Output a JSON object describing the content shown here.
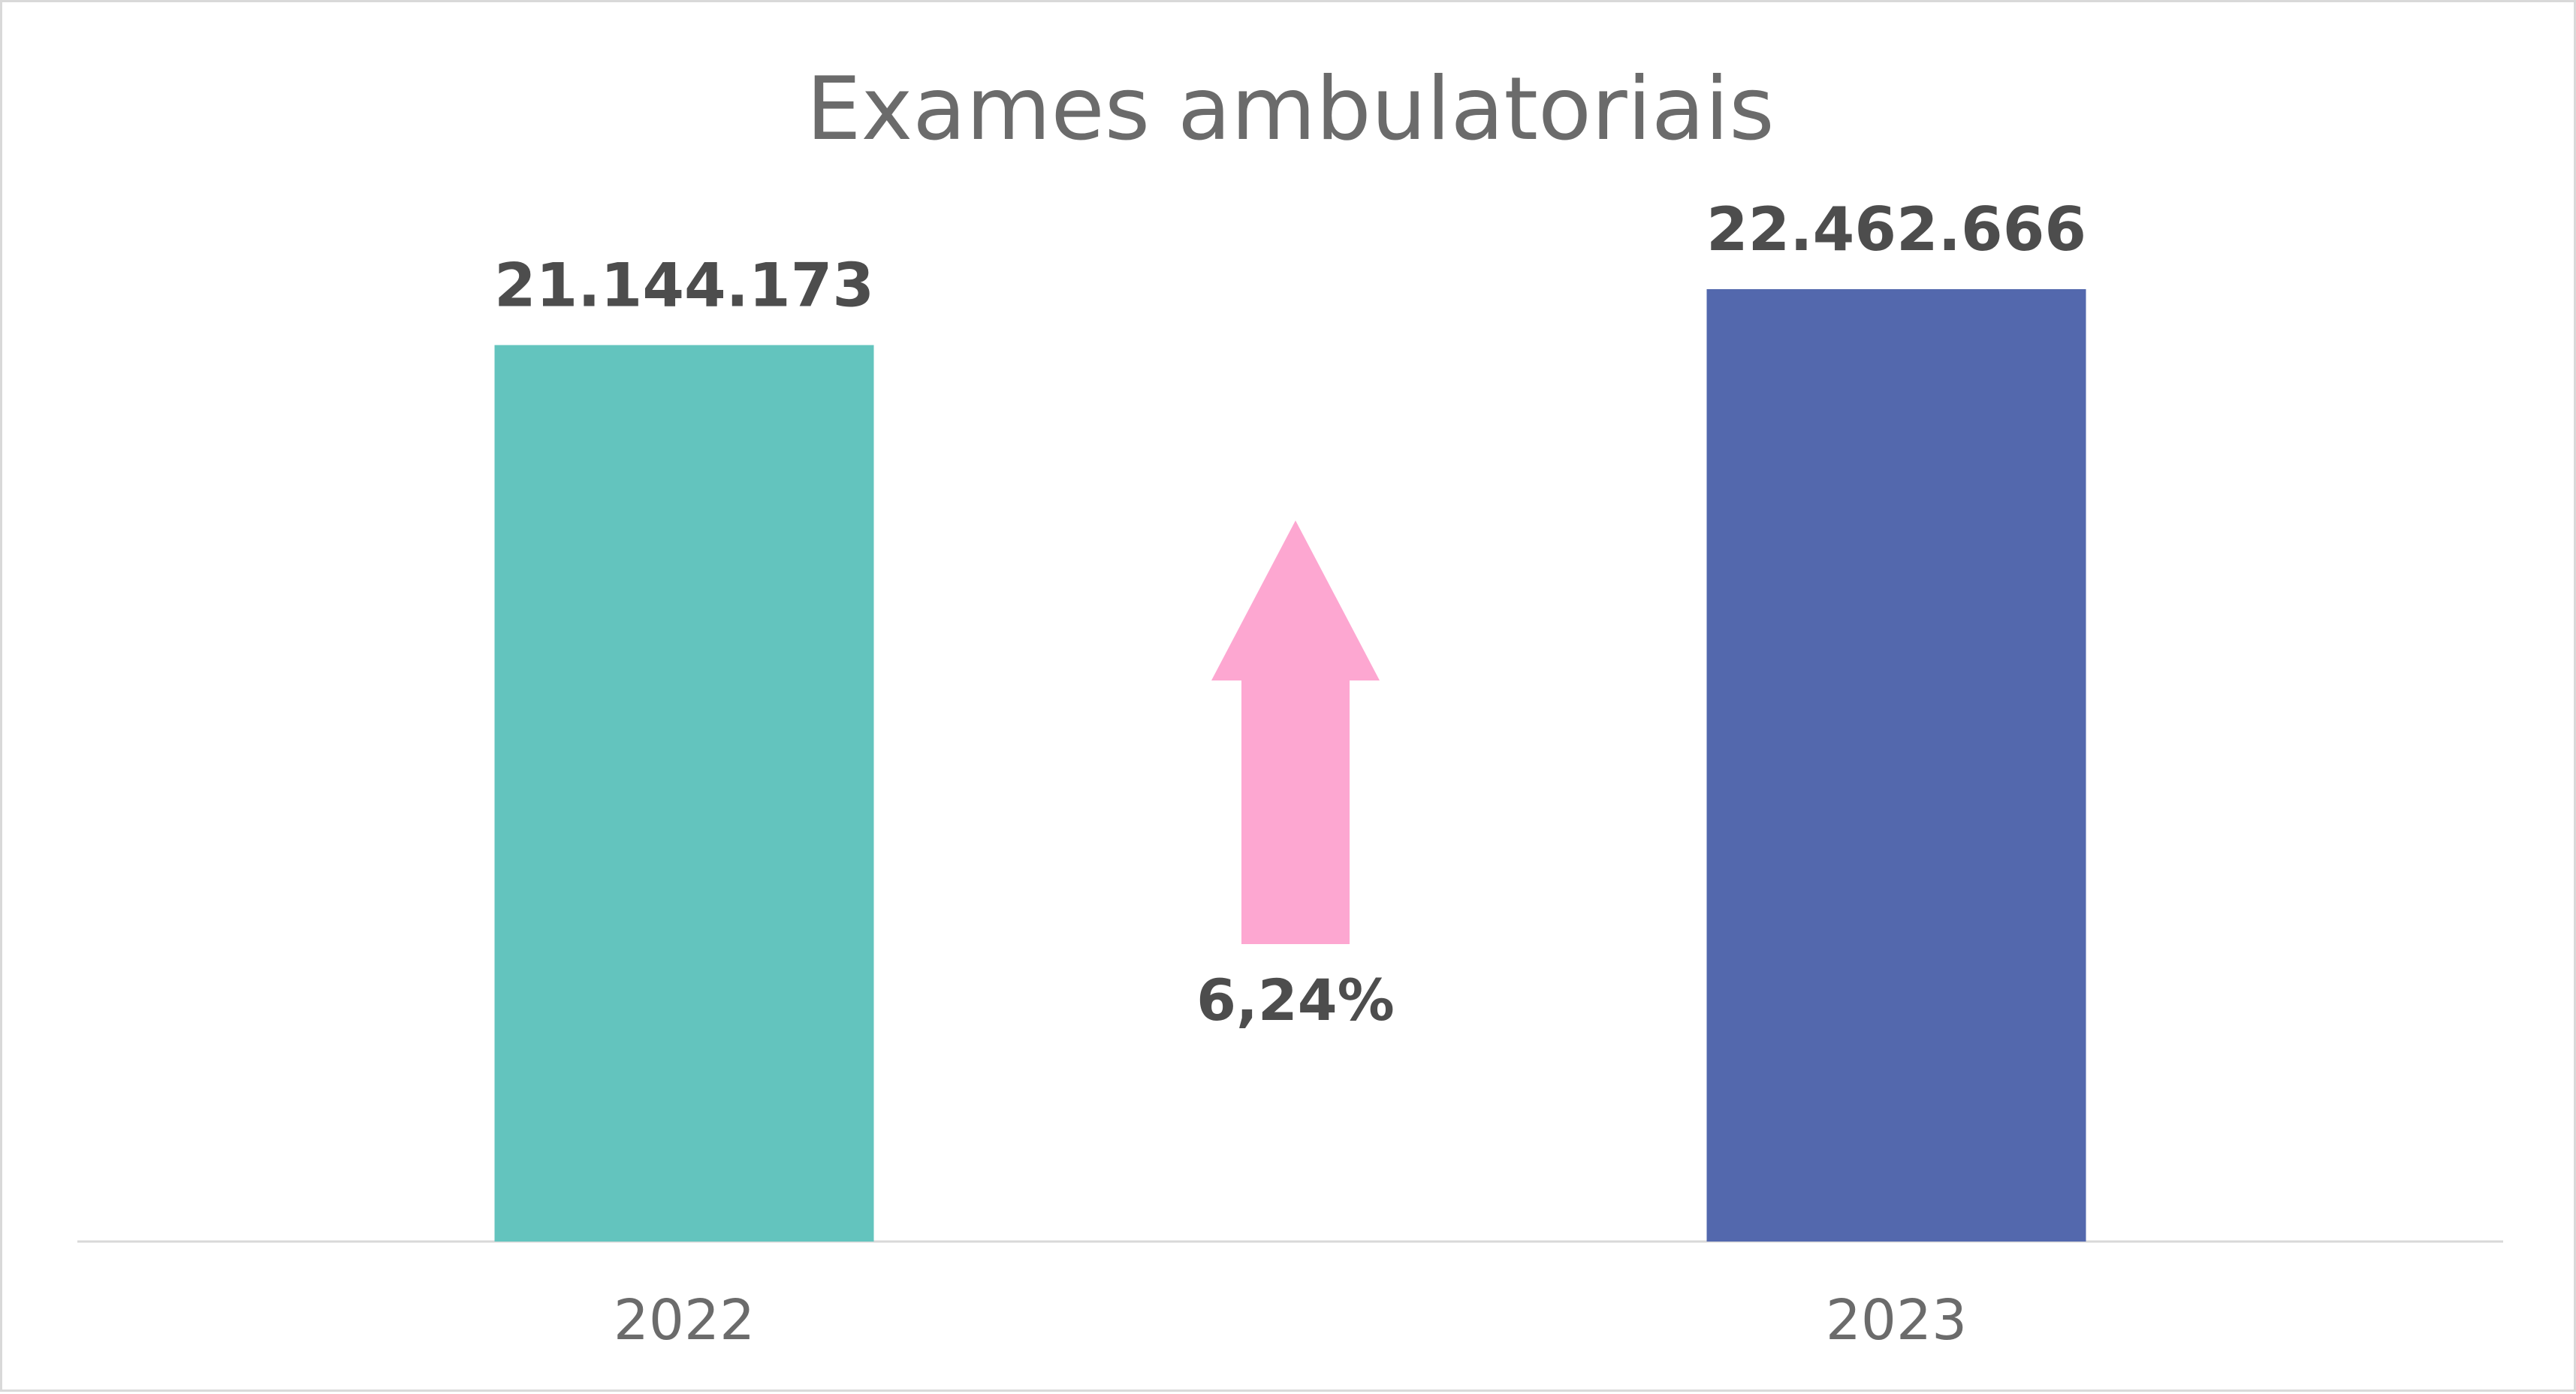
{
  "chart_data": {
    "type": "bar",
    "title": "Exames ambulatoriais",
    "categories": [
      "2022",
      "2023"
    ],
    "values": [
      21144173,
      22462666
    ],
    "value_labels": [
      "21.144.173",
      "22.462.666"
    ],
    "colors": [
      "#63c4be",
      "#5368ad"
    ],
    "ylim": [
      0,
      22462666
    ],
    "grid": false,
    "legend": "none",
    "annotation": {
      "text": "6,24%",
      "icon": "up-arrow-icon",
      "color": "#fda7d1"
    }
  }
}
